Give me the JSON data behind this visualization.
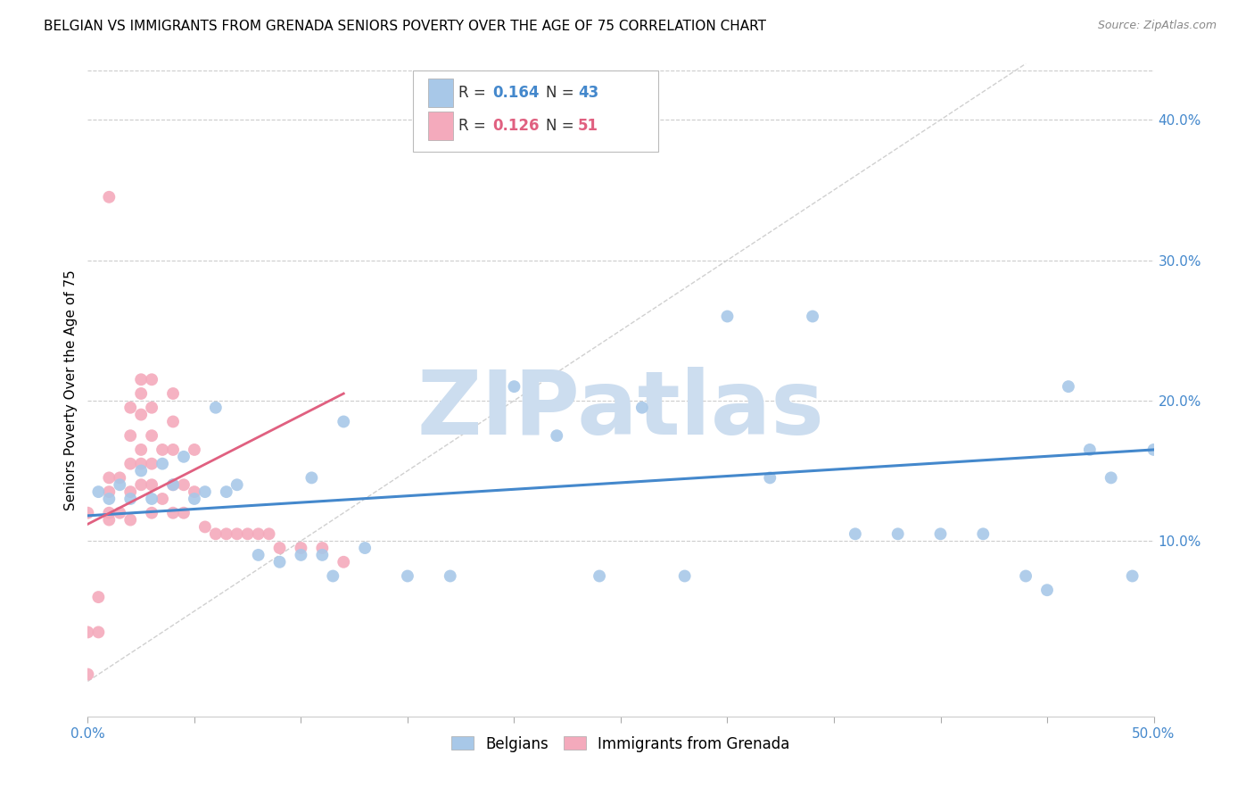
{
  "title": "BELGIAN VS IMMIGRANTS FROM GRENADA SENIORS POVERTY OVER THE AGE OF 75 CORRELATION CHART",
  "source": "Source: ZipAtlas.com",
  "ylabel": "Seniors Poverty Over the Age of 75",
  "xlim": [
    0.0,
    0.5
  ],
  "ylim": [
    -0.025,
    0.44
  ],
  "xticks": [
    0.0,
    0.05,
    0.1,
    0.15,
    0.2,
    0.25,
    0.3,
    0.35,
    0.4,
    0.45,
    0.5
  ],
  "xtick_labels_show": [
    "0.0%",
    "",
    "",
    "",
    "",
    "",
    "",
    "",
    "",
    "",
    "50.0%"
  ],
  "yticks": [
    0.1,
    0.2,
    0.3,
    0.4
  ],
  "ytick_labels": [
    "10.0%",
    "20.0%",
    "30.0%",
    "40.0%"
  ],
  "blue_color": "#a8c8e8",
  "pink_color": "#f4aabc",
  "blue_line_color": "#4488cc",
  "pink_line_color": "#e06080",
  "blue_R": 0.164,
  "blue_N": 43,
  "pink_R": 0.126,
  "pink_N": 51,
  "blue_scatter_x": [
    0.005,
    0.01,
    0.015,
    0.02,
    0.025,
    0.03,
    0.035,
    0.04,
    0.045,
    0.05,
    0.055,
    0.06,
    0.065,
    0.07,
    0.08,
    0.09,
    0.1,
    0.105,
    0.11,
    0.115,
    0.12,
    0.13,
    0.15,
    0.17,
    0.2,
    0.22,
    0.24,
    0.26,
    0.28,
    0.3,
    0.32,
    0.34,
    0.36,
    0.38,
    0.4,
    0.42,
    0.44,
    0.45,
    0.46,
    0.47,
    0.48,
    0.49,
    0.5
  ],
  "blue_scatter_y": [
    0.135,
    0.13,
    0.14,
    0.13,
    0.15,
    0.13,
    0.155,
    0.14,
    0.16,
    0.13,
    0.135,
    0.195,
    0.135,
    0.14,
    0.09,
    0.085,
    0.09,
    0.145,
    0.09,
    0.075,
    0.185,
    0.095,
    0.075,
    0.075,
    0.21,
    0.175,
    0.075,
    0.195,
    0.075,
    0.26,
    0.145,
    0.26,
    0.105,
    0.105,
    0.105,
    0.105,
    0.075,
    0.065,
    0.21,
    0.165,
    0.145,
    0.075,
    0.165
  ],
  "pink_scatter_x": [
    0.0,
    0.0,
    0.0,
    0.005,
    0.005,
    0.01,
    0.01,
    0.01,
    0.01,
    0.015,
    0.015,
    0.02,
    0.02,
    0.02,
    0.02,
    0.02,
    0.025,
    0.025,
    0.025,
    0.025,
    0.025,
    0.025,
    0.03,
    0.03,
    0.03,
    0.03,
    0.03,
    0.03,
    0.035,
    0.035,
    0.04,
    0.04,
    0.04,
    0.04,
    0.04,
    0.045,
    0.045,
    0.05,
    0.05,
    0.055,
    0.06,
    0.065,
    0.07,
    0.075,
    0.08,
    0.085,
    0.09,
    0.1,
    0.11,
    0.12,
    0.01
  ],
  "pink_scatter_y": [
    0.005,
    0.035,
    0.12,
    0.035,
    0.06,
    0.12,
    0.135,
    0.115,
    0.145,
    0.12,
    0.145,
    0.115,
    0.135,
    0.155,
    0.175,
    0.195,
    0.14,
    0.155,
    0.165,
    0.19,
    0.205,
    0.215,
    0.12,
    0.14,
    0.155,
    0.175,
    0.195,
    0.215,
    0.13,
    0.165,
    0.12,
    0.14,
    0.165,
    0.185,
    0.205,
    0.12,
    0.14,
    0.135,
    0.165,
    0.11,
    0.105,
    0.105,
    0.105,
    0.105,
    0.105,
    0.105,
    0.095,
    0.095,
    0.095,
    0.085,
    0.345
  ],
  "blue_line_x": [
    0.0,
    0.5
  ],
  "blue_line_y": [
    0.118,
    0.165
  ],
  "pink_line_x": [
    0.0,
    0.12
  ],
  "pink_line_y": [
    0.112,
    0.205
  ],
  "diag_line_color": "#d0d0d0",
  "watermark_text": "ZIPatlas",
  "watermark_color": "#ccddef",
  "background_color": "#ffffff",
  "grid_color": "#cccccc",
  "title_fontsize": 11,
  "axis_label_fontsize": 11,
  "tick_fontsize": 11,
  "legend_fontsize": 12,
  "right_tick_color": "#4488cc"
}
